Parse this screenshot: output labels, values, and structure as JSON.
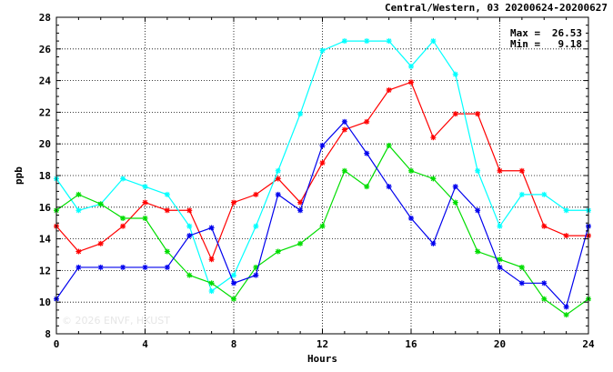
{
  "header": {
    "title": "Central/Western, 03 20200624-20200627"
  },
  "stats": {
    "max_label": "Max =",
    "max_value": "26.53",
    "min_label": "Min =",
    "min_value": "9.18"
  },
  "watermark": "© 2026  ENVF, HKUST",
  "chart_data": {
    "type": "line",
    "xlabel": "Hours",
    "ylabel": "ppb",
    "xlim": [
      0,
      24
    ],
    "ylim": [
      8,
      28
    ],
    "x_ticks": [
      0,
      4,
      8,
      12,
      16,
      20,
      24
    ],
    "y_ticks": [
      8,
      10,
      12,
      14,
      16,
      18,
      20,
      22,
      24,
      26,
      28
    ],
    "grid": true,
    "x": [
      0,
      1,
      2,
      3,
      4,
      5,
      6,
      7,
      8,
      9,
      10,
      11,
      12,
      13,
      14,
      15,
      16,
      17,
      18,
      19,
      20,
      21,
      22,
      23,
      24
    ],
    "series": [
      {
        "color": "#ff0000",
        "values": [
          14.8,
          13.2,
          13.7,
          14.8,
          16.3,
          15.8,
          15.8,
          12.7,
          16.3,
          16.8,
          17.8,
          16.3,
          18.8,
          20.9,
          21.4,
          23.4,
          23.9,
          20.4,
          21.9,
          21.9,
          18.3,
          18.3,
          14.8,
          14.2,
          14.2
        ]
      },
      {
        "color": "#00ffff",
        "values": [
          17.8,
          15.8,
          16.2,
          17.8,
          17.3,
          16.8,
          14.8,
          10.7,
          11.7,
          14.8,
          18.3,
          21.9,
          25.9,
          26.5,
          26.5,
          26.5,
          24.9,
          26.5,
          24.4,
          18.3,
          14.8,
          16.8,
          16.8,
          15.8,
          15.8
        ]
      },
      {
        "color": "#00dd00",
        "values": [
          15.8,
          16.8,
          16.2,
          15.3,
          15.3,
          13.2,
          11.7,
          11.2,
          10.2,
          12.2,
          13.2,
          13.7,
          14.8,
          18.3,
          17.3,
          19.9,
          18.3,
          17.8,
          16.3,
          13.2,
          12.7,
          12.2,
          10.2,
          9.2,
          10.2
        ]
      },
      {
        "color": "#0000ee",
        "values": [
          10.2,
          12.2,
          12.2,
          12.2,
          12.2,
          12.2,
          14.2,
          14.7,
          11.2,
          11.7,
          16.8,
          15.8,
          19.9,
          21.4,
          19.4,
          17.3,
          15.3,
          13.7,
          17.3,
          15.8,
          12.2,
          11.2,
          11.2,
          9.7,
          14.8
        ]
      }
    ]
  }
}
